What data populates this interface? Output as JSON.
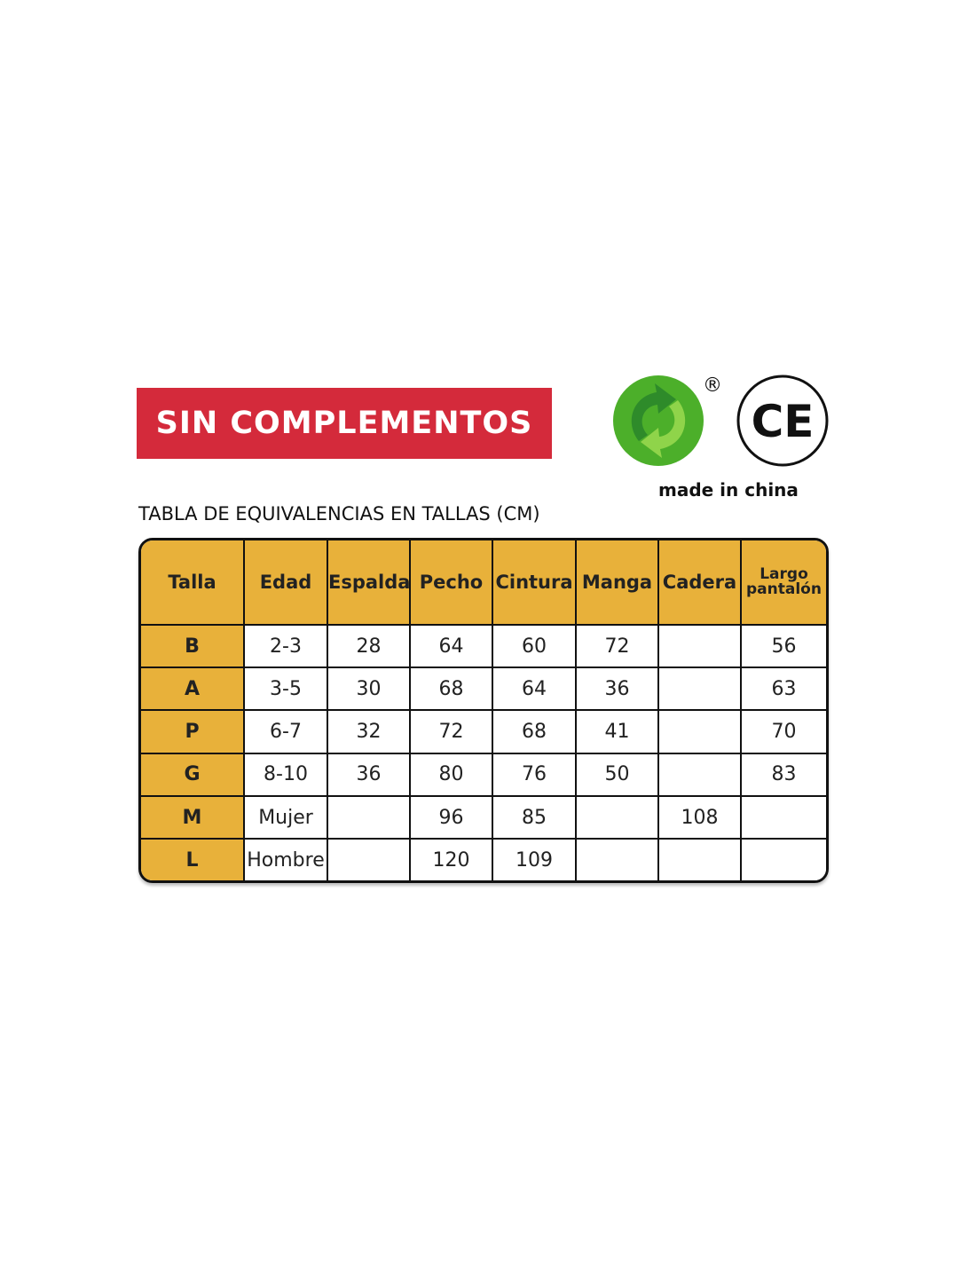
{
  "banner": {
    "label": "SIN COMPLEMENTOS",
    "color": "#d42a3b"
  },
  "logos": {
    "green_dot": "green-dot-recycling-icon",
    "registered": "®",
    "ce": "CE",
    "made_in": "made in china"
  },
  "table": {
    "title": "TABLA DE EQUIVALENCIAS EN TALLAS (CM)",
    "header_color": "#e8b13a",
    "headers": [
      "Talla",
      "Edad",
      "Espalda",
      "Pecho",
      "Cintura",
      "Manga",
      "Cadera",
      "Largo pantalón"
    ],
    "rows": [
      [
        "B",
        "2-3",
        "28",
        "64",
        "60",
        "72",
        "",
        "56"
      ],
      [
        "A",
        "3-5",
        "30",
        "68",
        "64",
        "36",
        "",
        "63"
      ],
      [
        "P",
        "6-7",
        "32",
        "72",
        "68",
        "41",
        "",
        "70"
      ],
      [
        "G",
        "8-10",
        "36",
        "80",
        "76",
        "50",
        "",
        "83"
      ],
      [
        "M",
        "Mujer",
        "",
        "96",
        "85",
        "",
        "108",
        ""
      ],
      [
        "L",
        "Hombre",
        "",
        "120",
        "109",
        "",
        "",
        ""
      ]
    ]
  }
}
